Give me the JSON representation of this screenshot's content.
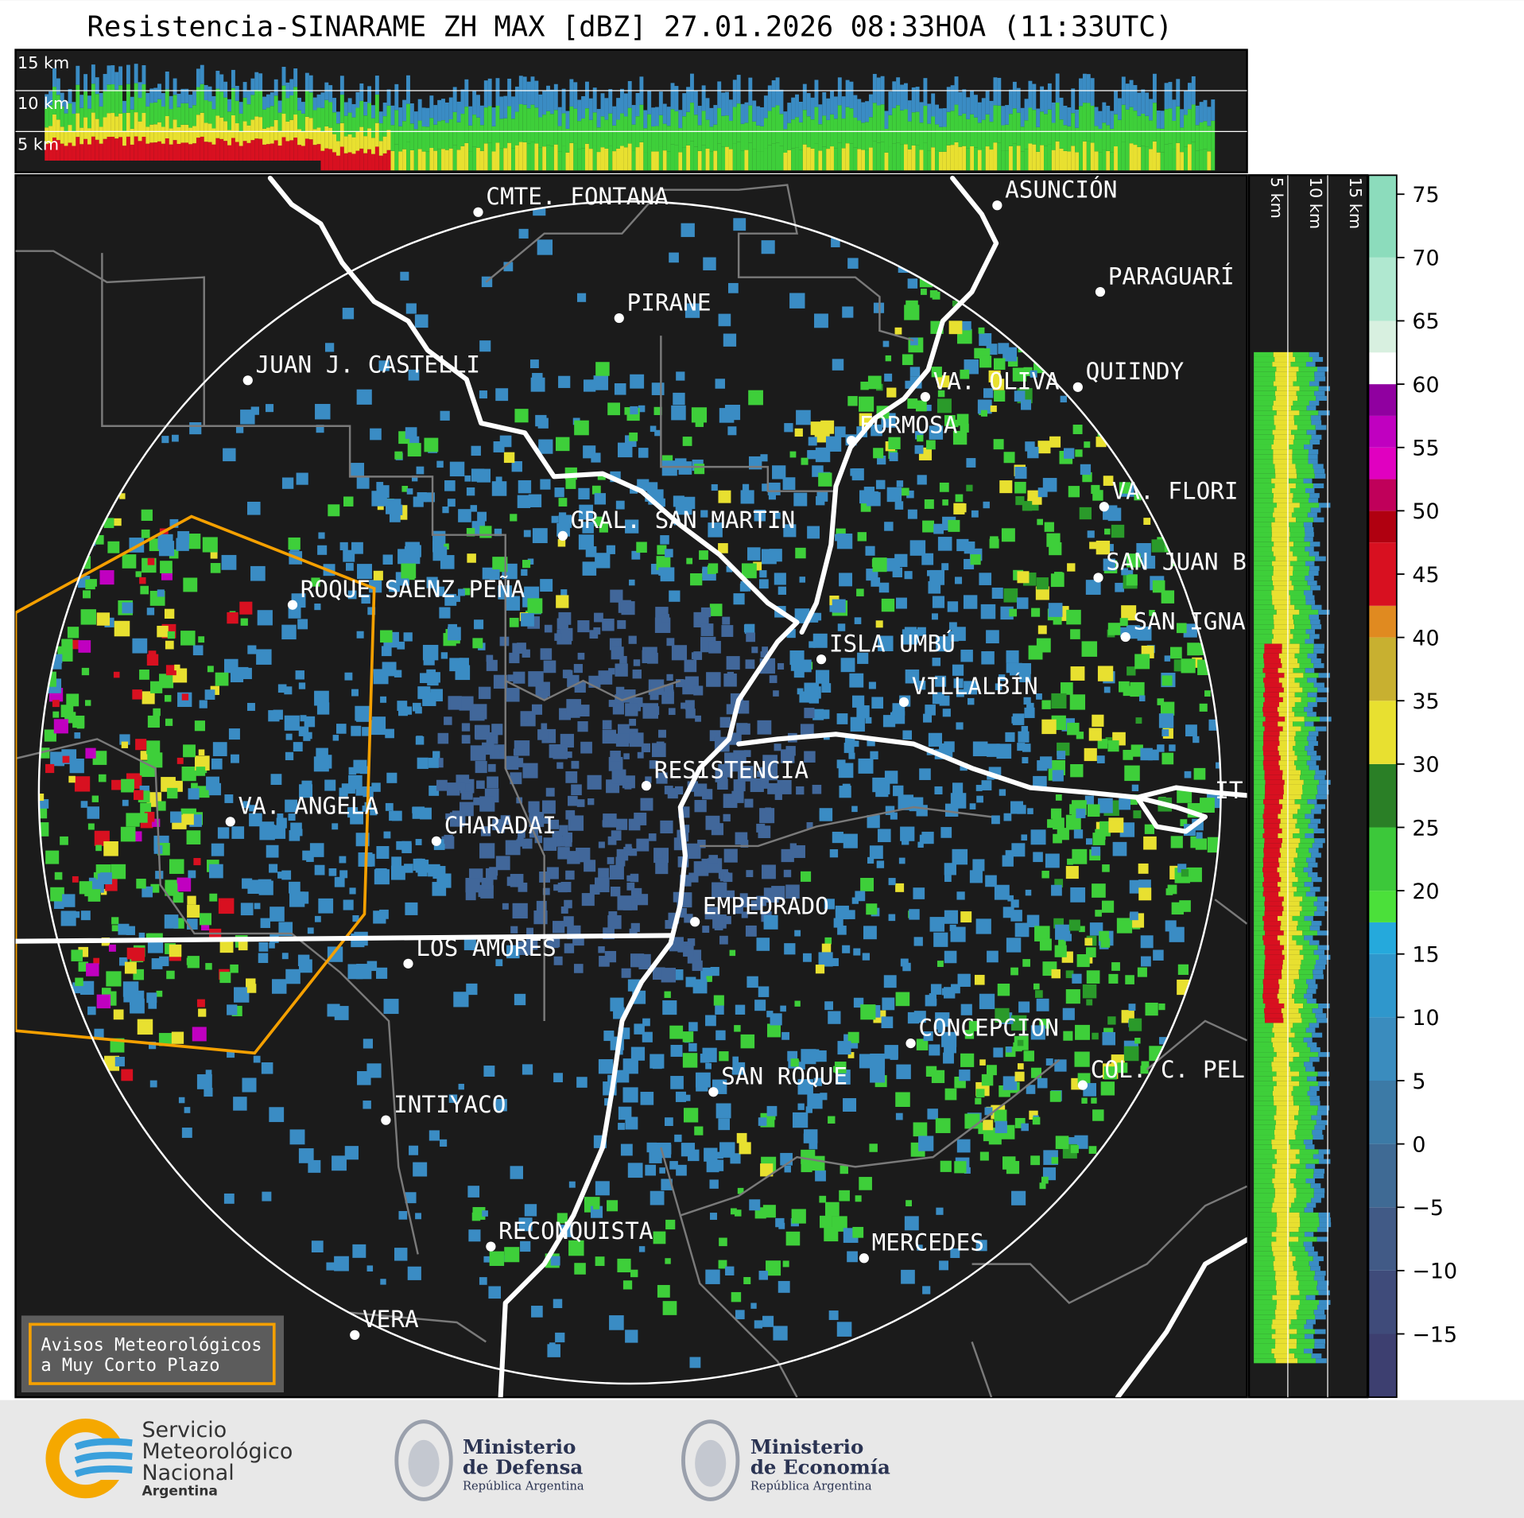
{
  "title": "Resistencia-SINARAME ZH MAX [dBZ] 27.01.2026 08:33HOA (11:33UTC)",
  "altitude_labels": [
    "15 km",
    "10 km",
    "5 km"
  ],
  "cities": [
    "CMTE. FONTANA",
    "ASUNCIÓN",
    "PIRANE",
    "PARAGUARÍ",
    "JUAN J. CASTELLI",
    "VA. OLIVA",
    "QUIINDY",
    "FORMOSA",
    "VA. FLORI",
    "GRAL. SAN MARTIN",
    "SAN JUAN B",
    "ROQUE SAENZ PEÑA",
    "SAN IGNA",
    "ISLA UMBÚ",
    "VILLALBÍN",
    "RESISTENCIA",
    "VA. ANGELA",
    "CHARADAI",
    "IT",
    "EMPEDRADO",
    "LOS AMORES",
    "CONCEPCION",
    "COL. C. PEL",
    "SAN ROQUE",
    "INTIYACO",
    "RECONQUISTA",
    "MERCEDES",
    "VERA"
  ],
  "legend_box": [
    "Avisos Meteorológicos",
    "a Muy Corto Plazo"
  ],
  "logos": {
    "smn": [
      "Servicio",
      "Meteorológico",
      "Nacional",
      "Argentina"
    ],
    "defensa": [
      "Ministerio",
      "de Defensa",
      "República Argentina"
    ],
    "economia": [
      "Ministerio",
      "de Economía",
      "República Argentina"
    ]
  },
  "colorbar": {
    "lim": [
      -20,
      76.5
    ],
    "ticks": [
      75,
      70,
      65,
      60,
      55,
      50,
      45,
      40,
      35,
      30,
      25,
      20,
      15,
      10,
      5,
      0,
      {
        "value": -5,
        "label": "−5"
      },
      {
        "value": -10,
        "label": "−10"
      },
      {
        "value": -15,
        "label": "−15"
      }
    ],
    "bands": [
      {
        "from": -20,
        "to": -15,
        "color": "#3d3f70"
      },
      {
        "from": -15,
        "to": -10,
        "color": "#3f4b7a"
      },
      {
        "from": -10,
        "to": -5,
        "color": "#415a86"
      },
      {
        "from": -5,
        "to": 0,
        "color": "#3f6a94"
      },
      {
        "from": 0,
        "to": 5,
        "color": "#3c7aa6"
      },
      {
        "from": 5,
        "to": 10,
        "color": "#3a8cbe"
      },
      {
        "from": 10,
        "to": 15,
        "color": "#2f97cc"
      },
      {
        "from": 15,
        "to": 17.5,
        "color": "#25a9dc"
      },
      {
        "from": 17.5,
        "to": 20,
        "color": "#4be03a"
      },
      {
        "from": 20,
        "to": 25,
        "color": "#3cc83a"
      },
      {
        "from": 25,
        "to": 30,
        "color": "#2a7f26"
      },
      {
        "from": 30,
        "to": 35,
        "color": "#e8e030"
      },
      {
        "from": 35,
        "to": 40,
        "color": "#c8b030"
      },
      {
        "from": 40,
        "to": 42.5,
        "color": "#e08a20"
      },
      {
        "from": 42.5,
        "to": 47.5,
        "color": "#d81020"
      },
      {
        "from": 47.5,
        "to": 50,
        "color": "#b00010"
      },
      {
        "from": 50,
        "to": 52.5,
        "color": "#c0005a"
      },
      {
        "from": 52.5,
        "to": 55,
        "color": "#e000c0"
      },
      {
        "from": 55,
        "to": 57.5,
        "color": "#c000c0"
      },
      {
        "from": 57.5,
        "to": 60,
        "color": "#9000a0"
      },
      {
        "from": 60,
        "to": 62.5,
        "color": "#ffffff"
      },
      {
        "from": 62.5,
        "to": 65,
        "color": "#d8f0e0"
      },
      {
        "from": 65,
        "to": 70,
        "color": "#b0e8d0"
      },
      {
        "from": 70,
        "to": 76.5,
        "color": "#8cdcbc"
      }
    ]
  }
}
